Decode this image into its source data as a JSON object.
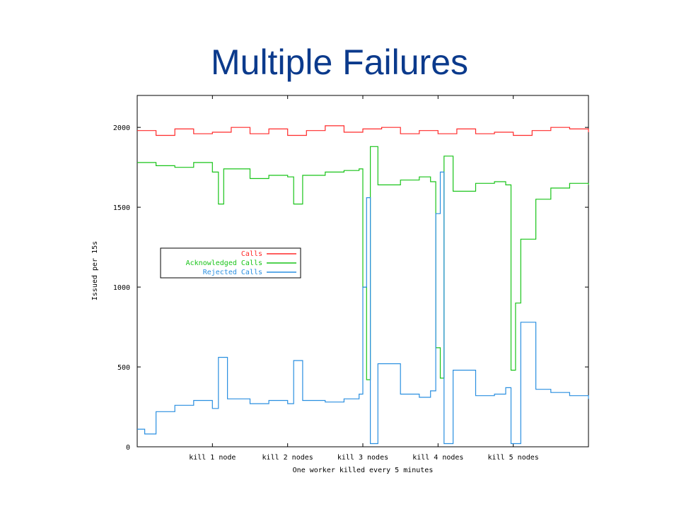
{
  "slide": {
    "title": "Multiple Failures"
  },
  "chart_data": {
    "type": "line",
    "title": "",
    "xlabel": "One worker killed every 5 minutes",
    "ylabel": "Issued per 15s",
    "ylim": [
      0,
      2200
    ],
    "yticks": [
      0,
      500,
      1000,
      1500,
      2000
    ],
    "x_tick_labels": [
      "kill 1 node",
      "kill 2 nodes",
      "kill 3 nodes",
      "kill 4 nodes",
      "kill 5 nodes"
    ],
    "x_tick_positions": [
      1,
      2,
      3,
      4,
      5
    ],
    "xlim": [
      0,
      6
    ],
    "grid": false,
    "legend_placement": "left-middle",
    "series": [
      {
        "name": "Calls",
        "color": "#ff2a2a",
        "base": 1960,
        "noise": 70,
        "values_note": "",
        "points": [
          [
            0.0,
            1980
          ],
          [
            0.25,
            1950
          ],
          [
            0.5,
            1990
          ],
          [
            0.75,
            1960
          ],
          [
            1.0,
            1970
          ],
          [
            1.25,
            2000
          ],
          [
            1.5,
            1960
          ],
          [
            1.75,
            1990
          ],
          [
            2.0,
            1950
          ],
          [
            2.25,
            1980
          ],
          [
            2.5,
            2010
          ],
          [
            2.75,
            1970
          ],
          [
            3.0,
            1990
          ],
          [
            3.25,
            2000
          ],
          [
            3.5,
            1960
          ],
          [
            3.75,
            1980
          ],
          [
            4.0,
            1960
          ],
          [
            4.25,
            1990
          ],
          [
            4.5,
            1960
          ],
          [
            4.75,
            1970
          ],
          [
            5.0,
            1950
          ],
          [
            5.25,
            1980
          ],
          [
            5.5,
            2000
          ],
          [
            5.75,
            1990
          ],
          [
            6.0,
            1970
          ]
        ]
      },
      {
        "name": "Acknowledged Calls",
        "color": "#19c419",
        "points": [
          [
            0.0,
            1780
          ],
          [
            0.25,
            1760
          ],
          [
            0.5,
            1750
          ],
          [
            0.75,
            1780
          ],
          [
            1.0,
            1720
          ],
          [
            1.08,
            1520
          ],
          [
            1.15,
            1740
          ],
          [
            1.5,
            1680
          ],
          [
            1.75,
            1700
          ],
          [
            2.0,
            1690
          ],
          [
            2.08,
            1520
          ],
          [
            2.2,
            1700
          ],
          [
            2.5,
            1720
          ],
          [
            2.75,
            1730
          ],
          [
            2.95,
            1740
          ],
          [
            3.0,
            1000
          ],
          [
            3.05,
            420
          ],
          [
            3.1,
            1880
          ],
          [
            3.2,
            1640
          ],
          [
            3.5,
            1670
          ],
          [
            3.75,
            1690
          ],
          [
            3.9,
            1660
          ],
          [
            3.97,
            620
          ],
          [
            4.03,
            430
          ],
          [
            4.08,
            1820
          ],
          [
            4.2,
            1600
          ],
          [
            4.5,
            1650
          ],
          [
            4.75,
            1660
          ],
          [
            4.9,
            1640
          ],
          [
            4.97,
            480
          ],
          [
            5.03,
            900
          ],
          [
            5.1,
            1300
          ],
          [
            5.3,
            1550
          ],
          [
            5.5,
            1620
          ],
          [
            5.75,
            1650
          ],
          [
            6.0,
            1640
          ]
        ]
      },
      {
        "name": "Rejected Calls",
        "color": "#2a8fe0",
        "points": [
          [
            0.0,
            110
          ],
          [
            0.1,
            80
          ],
          [
            0.25,
            220
          ],
          [
            0.5,
            260
          ],
          [
            0.75,
            290
          ],
          [
            1.0,
            240
          ],
          [
            1.08,
            560
          ],
          [
            1.2,
            300
          ],
          [
            1.5,
            270
          ],
          [
            1.75,
            290
          ],
          [
            2.0,
            270
          ],
          [
            2.08,
            540
          ],
          [
            2.2,
            290
          ],
          [
            2.5,
            280
          ],
          [
            2.75,
            300
          ],
          [
            2.95,
            330
          ],
          [
            3.0,
            1000
          ],
          [
            3.05,
            1560
          ],
          [
            3.1,
            20
          ],
          [
            3.2,
            520
          ],
          [
            3.5,
            330
          ],
          [
            3.75,
            310
          ],
          [
            3.9,
            350
          ],
          [
            3.97,
            1460
          ],
          [
            4.03,
            1720
          ],
          [
            4.08,
            20
          ],
          [
            4.2,
            480
          ],
          [
            4.5,
            320
          ],
          [
            4.75,
            330
          ],
          [
            4.9,
            370
          ],
          [
            4.97,
            20
          ],
          [
            5.03,
            20
          ],
          [
            5.1,
            780
          ],
          [
            5.3,
            360
          ],
          [
            5.5,
            340
          ],
          [
            5.75,
            320
          ],
          [
            6.0,
            300
          ]
        ]
      }
    ]
  }
}
